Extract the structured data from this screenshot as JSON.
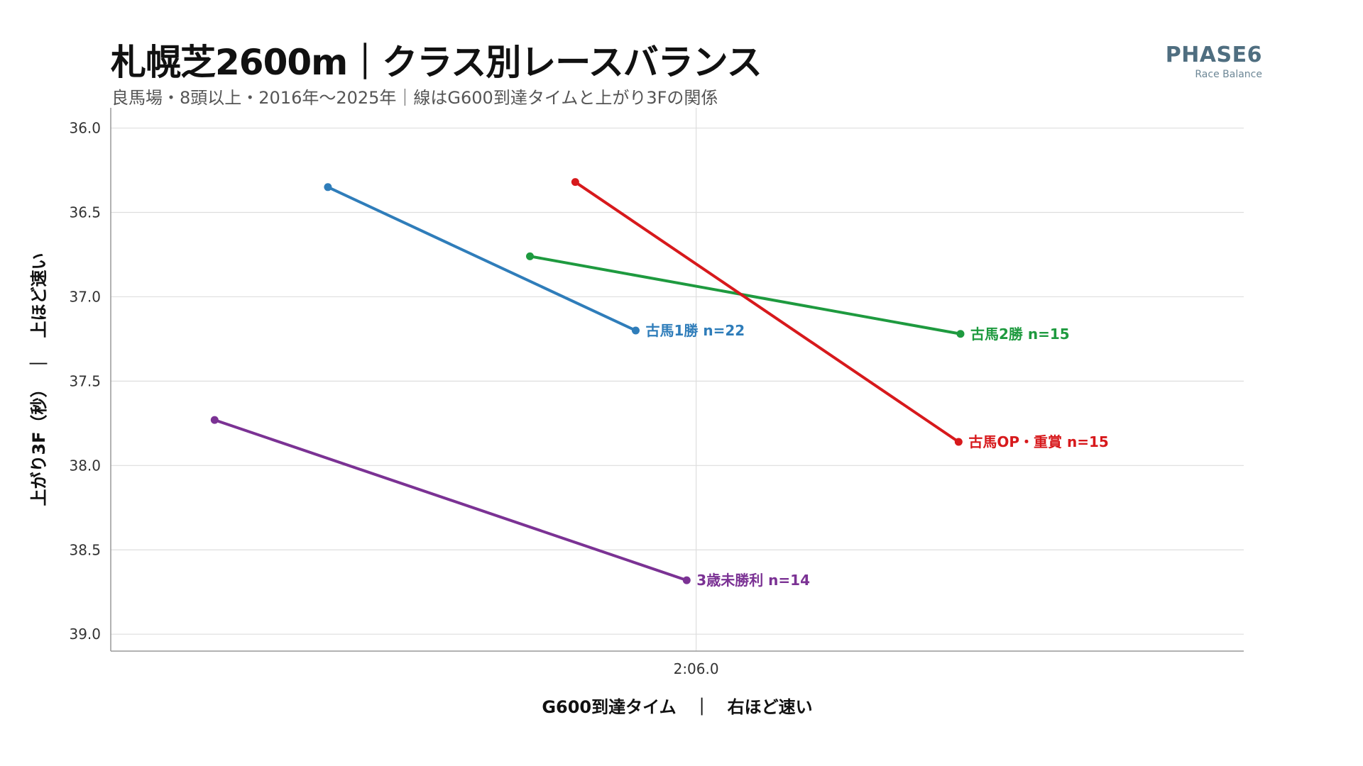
{
  "header": {
    "title": "札幌芝2600m｜クラス別レースバランス",
    "subtitle": "良馬場・8頭以上・2016年〜2025年｜線はG600到達タイムと上がり3Fの関係"
  },
  "brand": {
    "name": "PHASE6",
    "tagline": "Race Balance"
  },
  "chart_data": {
    "type": "line",
    "title": "札幌芝2600m｜クラス別レースバランス",
    "xlabel": "G600到達タイム　｜　右ほど速い",
    "ylabel": "上がり3F（秒）　｜　上ほど速い",
    "x_ticks": [
      "2:06.0"
    ],
    "y_ticks": [
      "36.0",
      "36.5",
      "37.0",
      "37.5",
      "38.0",
      "38.5",
      "39.0"
    ],
    "ylim": [
      36.0,
      39.0
    ],
    "y_inverted": true,
    "grid": "horizontal",
    "series": [
      {
        "name": "古馬1勝",
        "label": "古馬1勝 n=22",
        "color": "#2f7dba",
        "points": [
          {
            "x": 124.05,
            "y": 36.35
          },
          {
            "x": 125.68,
            "y": 37.2
          }
        ]
      },
      {
        "name": "古馬2勝",
        "label": "古馬2勝 n=15",
        "color": "#1e9a3f",
        "points": [
          {
            "x": 125.12,
            "y": 36.76
          },
          {
            "x": 127.4,
            "y": 37.22
          }
        ]
      },
      {
        "name": "古馬OP・重賞",
        "label": "古馬OP・重賞 n=15",
        "color": "#d7191c",
        "points": [
          {
            "x": 125.36,
            "y": 36.32
          },
          {
            "x": 127.39,
            "y": 37.86
          }
        ]
      },
      {
        "name": "3歳未勝利",
        "label": "3歳未勝利 n=14",
        "color": "#7b3294",
        "points": [
          {
            "x": 123.45,
            "y": 37.73
          },
          {
            "x": 125.95,
            "y": 38.68
          }
        ]
      }
    ]
  }
}
